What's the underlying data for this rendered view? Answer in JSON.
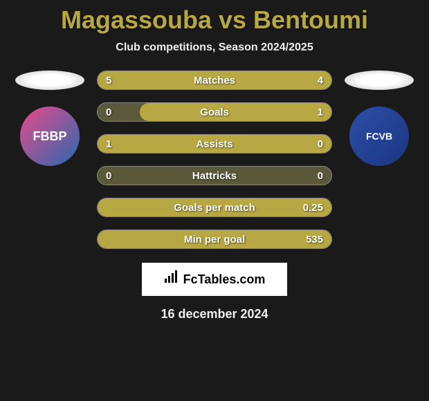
{
  "title": "Magassouba vs Bentoumi",
  "subtitle": "Club competitions, Season 2024/2025",
  "date": "16 december 2024",
  "branding": "FcTables.com",
  "colors": {
    "background": "#1a1a1a",
    "accent": "#b8a843",
    "bar_bg": "#5a5a3a",
    "text": "#ffffff"
  },
  "players": {
    "left": {
      "name": "Magassouba",
      "club_abbr": "FBBP",
      "club_bg": "linear-gradient(135deg, #e94b8a 0%, #2968b0 100%)"
    },
    "right": {
      "name": "Bentoumi",
      "club_abbr": "FCVB",
      "club_bg": "linear-gradient(135deg, #2d4fa8 0%, #1a3680 100%)"
    }
  },
  "stats": [
    {
      "label": "Matches",
      "left_value": "5",
      "right_value": "4",
      "left_fill_pct": 55,
      "right_fill_pct": 45,
      "fill_mode": "split"
    },
    {
      "label": "Goals",
      "left_value": "0",
      "right_value": "1",
      "left_fill_pct": 0,
      "right_fill_pct": 82,
      "fill_mode": "right-only"
    },
    {
      "label": "Assists",
      "left_value": "1",
      "right_value": "0",
      "left_fill_pct": 100,
      "right_fill_pct": 0,
      "fill_mode": "left-only"
    },
    {
      "label": "Hattricks",
      "left_value": "0",
      "right_value": "0",
      "left_fill_pct": 0,
      "right_fill_pct": 0,
      "fill_mode": "none"
    },
    {
      "label": "Goals per match",
      "left_value": "",
      "right_value": "0.25",
      "left_fill_pct": 0,
      "right_fill_pct": 100,
      "fill_mode": "right-full"
    },
    {
      "label": "Min per goal",
      "left_value": "",
      "right_value": "535",
      "left_fill_pct": 0,
      "right_fill_pct": 100,
      "fill_mode": "right-full"
    }
  ]
}
